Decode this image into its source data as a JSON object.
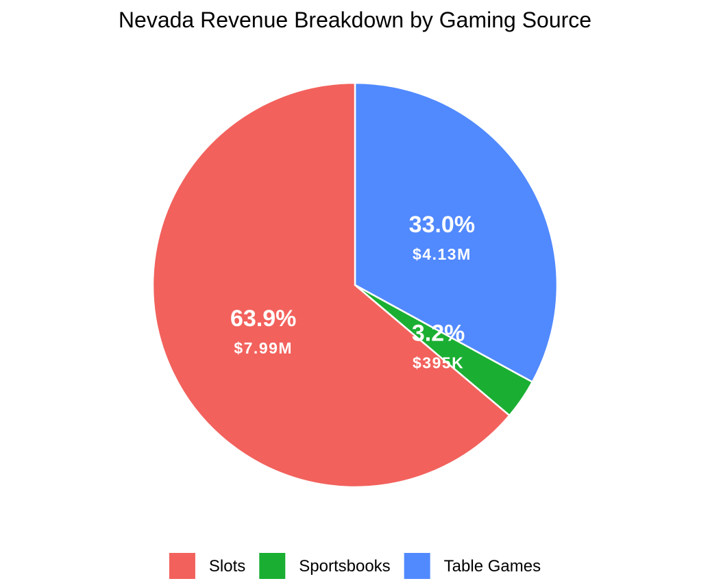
{
  "chart_data": {
    "type": "pie",
    "title": "Nevada Revenue Breakdown by Gaming Source",
    "slices": [
      {
        "name": "Slots",
        "percent": 63.9,
        "percent_label": "63.9%",
        "value_label": "$7.99M",
        "color": "#F2615C"
      },
      {
        "name": "Sportsbooks",
        "percent": 3.2,
        "percent_label": "3.2%",
        "value_label": "$395K",
        "color": "#1AAF32"
      },
      {
        "name": "Table Games",
        "percent": 33.0,
        "percent_label": "33.0%",
        "value_label": "$4.13M",
        "color": "#5189FF"
      }
    ],
    "legend_position": "bottom",
    "slice_order": [
      "Table Games",
      "Sportsbooks",
      "Slots"
    ]
  }
}
